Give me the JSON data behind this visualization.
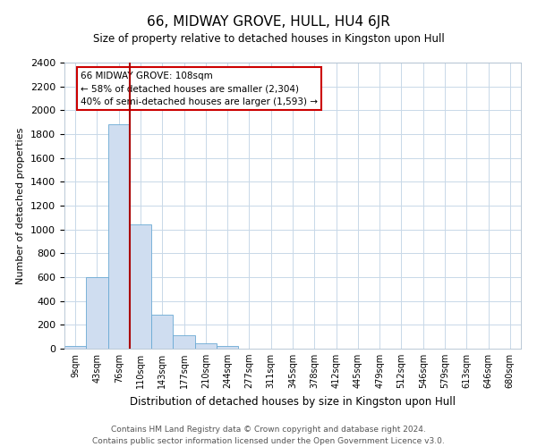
{
  "title": "66, MIDWAY GROVE, HULL, HU4 6JR",
  "subtitle": "Size of property relative to detached houses in Kingston upon Hull",
  "xlabel": "Distribution of detached houses by size in Kingston upon Hull",
  "ylabel": "Number of detached properties",
  "bar_labels": [
    "9sqm",
    "43sqm",
    "76sqm",
    "110sqm",
    "143sqm",
    "177sqm",
    "210sqm",
    "244sqm",
    "277sqm",
    "311sqm",
    "345sqm",
    "378sqm",
    "412sqm",
    "445sqm",
    "479sqm",
    "512sqm",
    "546sqm",
    "579sqm",
    "613sqm",
    "646sqm",
    "680sqm"
  ],
  "bar_values": [
    20,
    600,
    1880,
    1040,
    285,
    115,
    48,
    20,
    0,
    0,
    0,
    0,
    0,
    0,
    0,
    0,
    0,
    0,
    0,
    0,
    0
  ],
  "bar_color": "#cfddf0",
  "bar_edge_color": "#6aaad4",
  "vline_color": "#aa0000",
  "annotation_title": "66 MIDWAY GROVE: 108sqm",
  "annotation_line1": "← 58% of detached houses are smaller (2,304)",
  "annotation_line2": "40% of semi-detached houses are larger (1,593) →",
  "annotation_box_color": "#ffffff",
  "annotation_box_edge": "#cc0000",
  "ylim": [
    0,
    2400
  ],
  "yticks": [
    0,
    200,
    400,
    600,
    800,
    1000,
    1200,
    1400,
    1600,
    1800,
    2000,
    2200,
    2400
  ],
  "footer_line1": "Contains HM Land Registry data © Crown copyright and database right 2024.",
  "footer_line2": "Contains public sector information licensed under the Open Government Licence v3.0.",
  "bg_color": "#ffffff",
  "grid_color": "#c8d8e8"
}
